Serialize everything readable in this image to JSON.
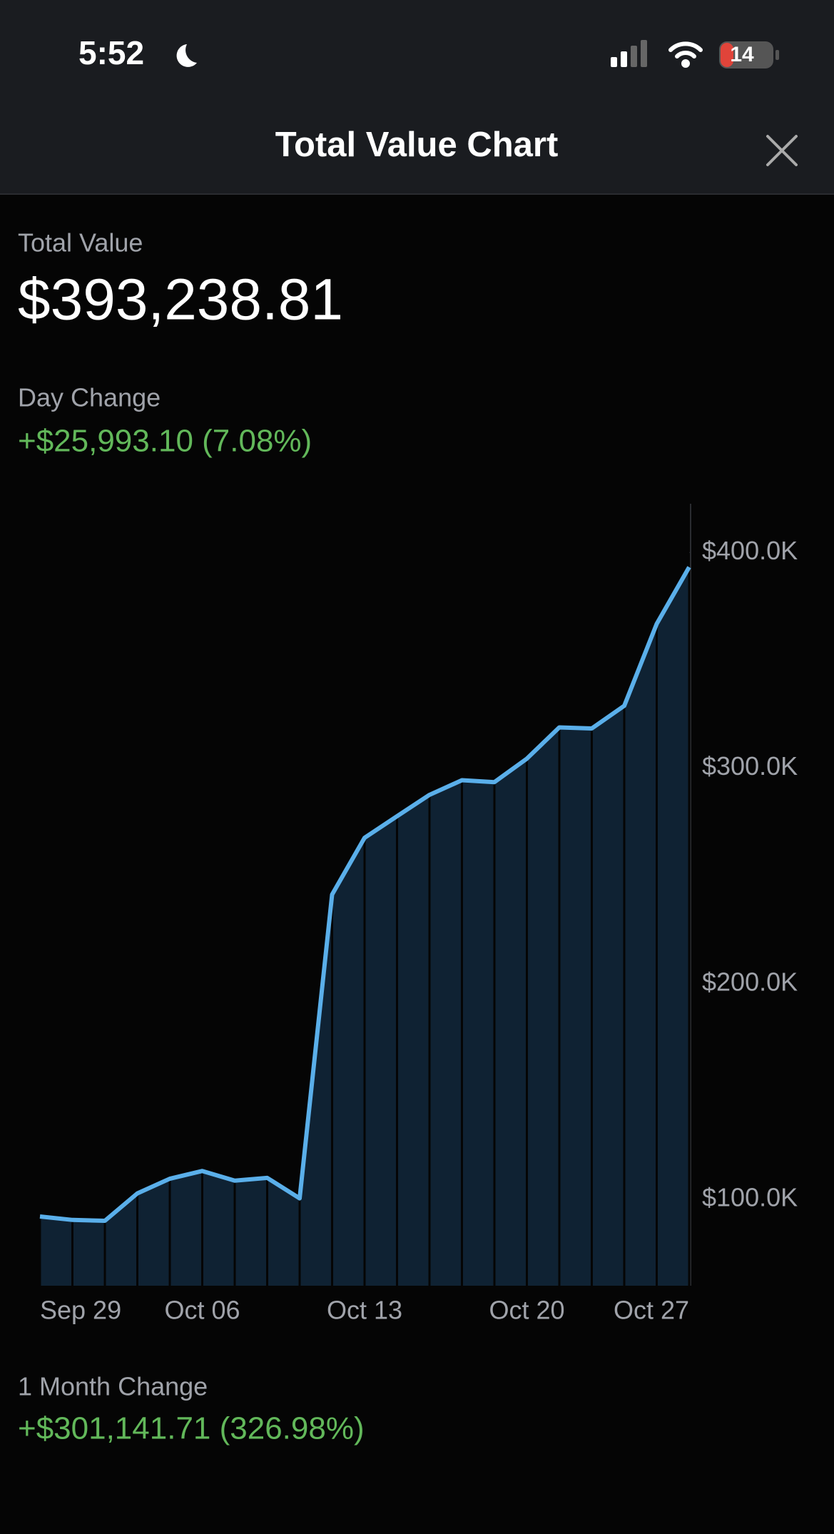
{
  "status_bar": {
    "time": "5:52",
    "battery": "14"
  },
  "header": {
    "title": "Total Value Chart"
  },
  "summary": {
    "total_label": "Total Value",
    "total_value": "$393,238.81",
    "day_label": "Day Change",
    "day_value": "+$25,993.10 (7.08%)",
    "month_label": "1 Month Change",
    "month_value": "+$301,141.71 (326.98%)"
  },
  "chart_data": {
    "type": "area",
    "categories": [
      null,
      "Sep 29",
      null,
      null,
      null,
      "Oct 06",
      null,
      null,
      null,
      null,
      "Oct 13",
      null,
      null,
      null,
      null,
      "Oct 20",
      null,
      null,
      null,
      "Oct 27",
      null
    ],
    "values": [
      92100,
      90500,
      90100,
      102800,
      109600,
      113200,
      108700,
      110000,
      100500,
      241400,
      267700,
      277700,
      287600,
      294400,
      293500,
      304400,
      318900,
      318400,
      328900,
      366900,
      393200
    ],
    "color": "#5aafea",
    "fill": "#0f2233",
    "ylim": [
      60000,
      422600
    ],
    "yticks": [
      {
        "value": 100000,
        "label": "$100.0K"
      },
      {
        "value": 200000,
        "label": "$200.0K"
      },
      {
        "value": 300000,
        "label": "$300.0K"
      },
      {
        "value": 400000,
        "label": "$400.0K"
      }
    ]
  }
}
